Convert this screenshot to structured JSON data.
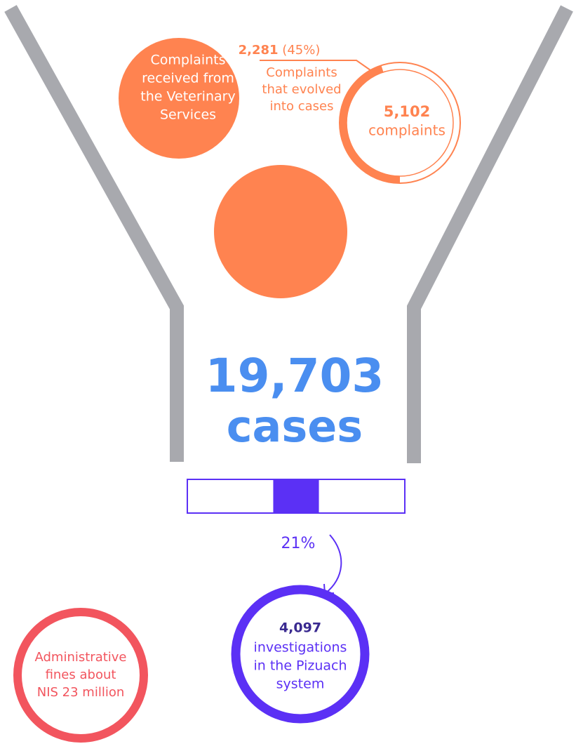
{
  "veterinary_complaints": {
    "lines": [
      "Complaints",
      "received from",
      "the Veterinary",
      "Services"
    ]
  },
  "evolved": {
    "count": "2,281",
    "share": {
      "value": 45,
      "label": "(45%)"
    },
    "lines": [
      "Complaints",
      "that evolved",
      "into cases"
    ]
  },
  "total_complaints": {
    "count": "5,102",
    "label": "complaints"
  },
  "cases": {
    "count": "19,703",
    "label": "cases"
  },
  "investigation_share": {
    "value": 21,
    "label": "21%"
  },
  "investigations": {
    "count": "4,097",
    "lines": [
      "investigations",
      "in the Pizuach",
      "system"
    ]
  },
  "fines": {
    "lines": [
      "Administrative",
      "fines about",
      "NIS 23 million"
    ]
  }
}
